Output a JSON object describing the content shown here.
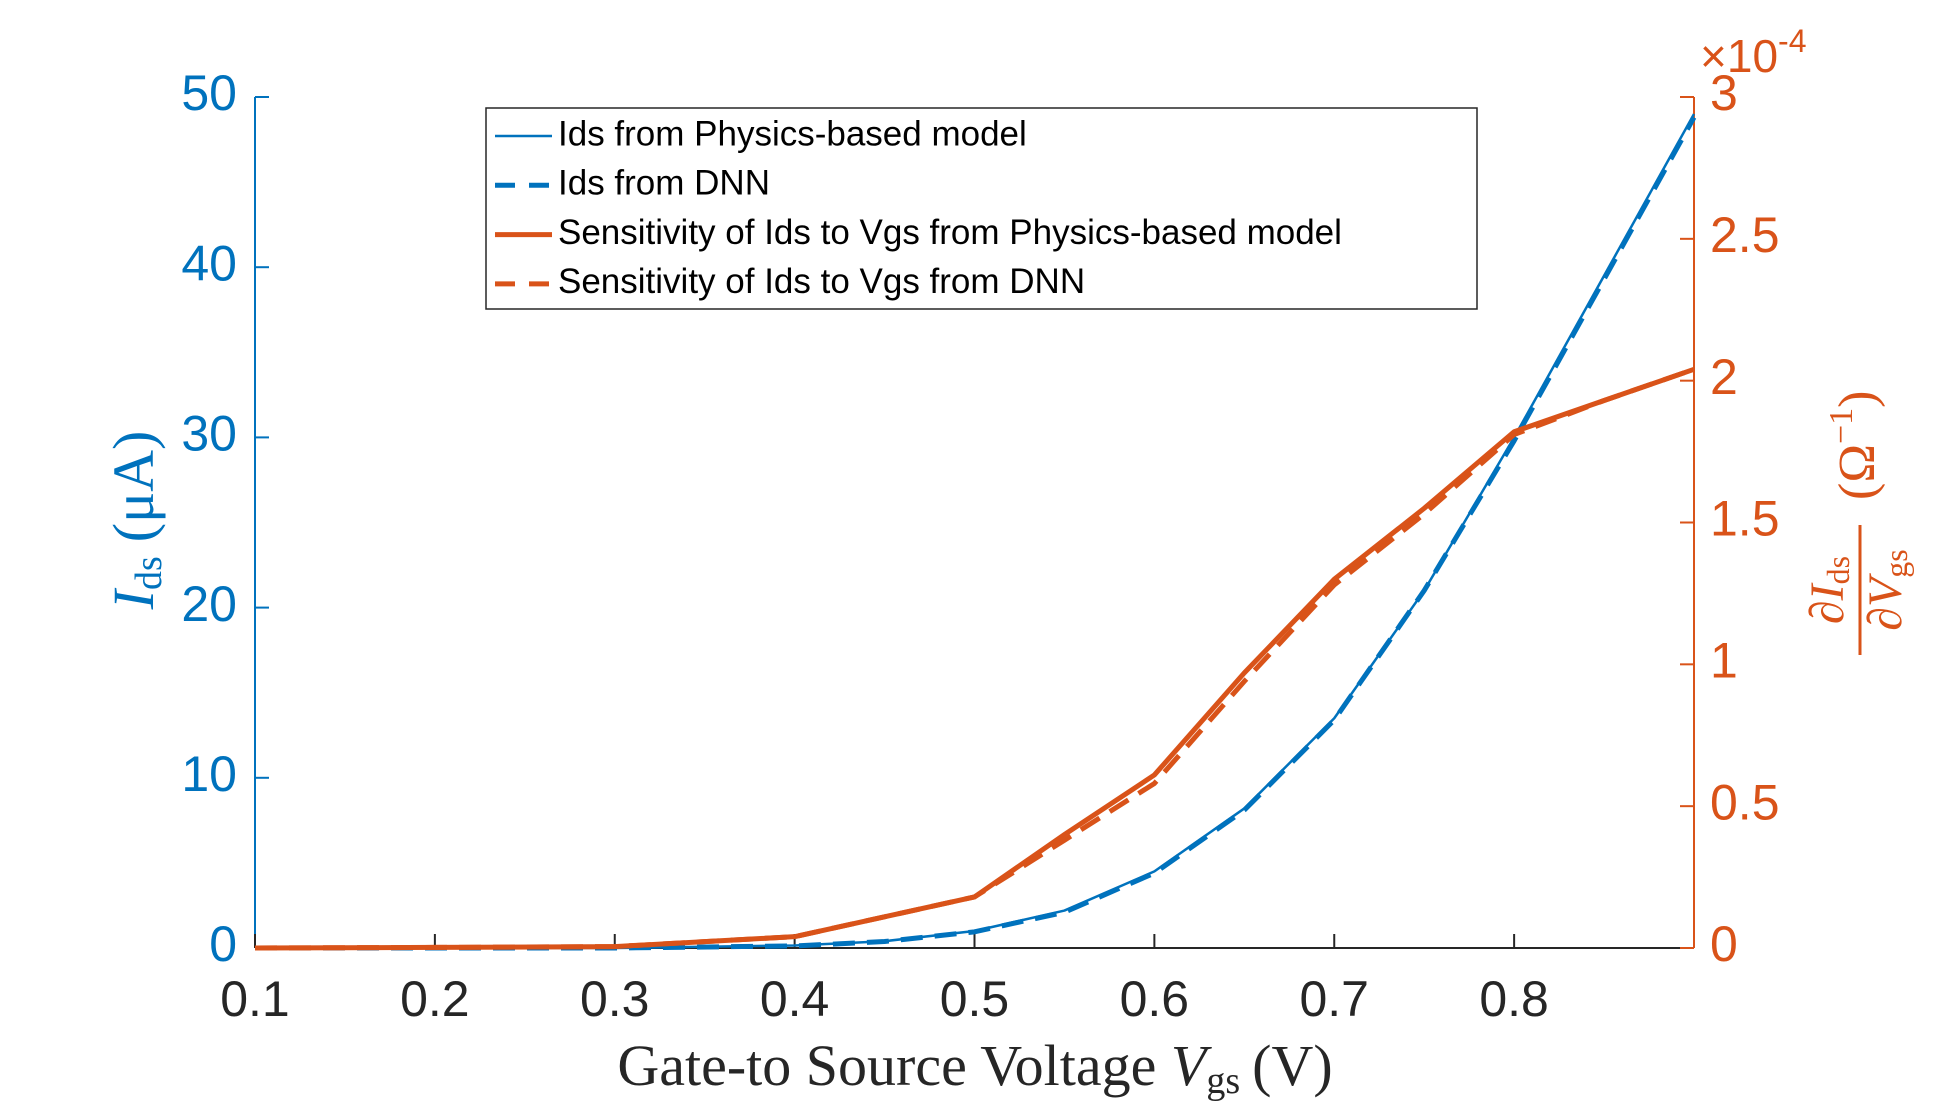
{
  "chart_data": {
    "type": "line",
    "x_label": {
      "text": "Gate-to Source Voltage ",
      "symbol": "V",
      "subscript": "gs",
      "unit": "(V)"
    },
    "y_label": {
      "symbol": "I",
      "subscript": "ds",
      "unit": "(μA)"
    },
    "y2_label": {
      "numerator": "∂I",
      "numerator_subscript": "ds",
      "denominator": "∂V",
      "denominator_subscript": "gs",
      "unit": "(Ω",
      "unit_exponent": "−1",
      "unit_close": ")"
    },
    "y2_multiplier": {
      "base": "×10",
      "exponent": "-4"
    },
    "x": [
      0.1,
      0.2,
      0.3,
      0.4,
      0.45,
      0.5,
      0.55,
      0.6,
      0.65,
      0.7,
      0.75,
      0.8,
      0.85,
      0.9
    ],
    "series": [
      {
        "name": "Ids from Physics-based model",
        "color": "#0072BD",
        "style": "solid",
        "axis": "y",
        "values": [
          0,
          0,
          0,
          0.15,
          0.4,
          1.0,
          2.2,
          4.5,
          8.2,
          13.5,
          21,
          30,
          39.5,
          49
        ]
      },
      {
        "name": "Ids from DNN",
        "color": "#0072BD",
        "style": "dashed",
        "axis": "y",
        "values": [
          0,
          0,
          0,
          0.12,
          0.38,
          0.95,
          2.1,
          4.4,
          8.1,
          13.4,
          21,
          29.8,
          39.3,
          48.8
        ]
      },
      {
        "name": "Sensitivity of Ids to Vgs from Physics-based model",
        "color": "#D95319",
        "style": "solid",
        "axis": "y2",
        "values": [
          0,
          2e-07,
          5e-07,
          4e-06,
          1.1e-05,
          1.8e-05,
          4e-05,
          6.1e-05,
          9.7e-05,
          0.00013,
          0.000155,
          0.000182,
          0.000193,
          0.000204
        ]
      },
      {
        "name": "Sensitivity of Ids to Vgs from DNN",
        "color": "#D95319",
        "style": "dashed",
        "axis": "y2",
        "values": [
          0,
          2e-07,
          5e-07,
          4e-06,
          1.1e-05,
          1.8e-05,
          3.8e-05,
          5.8e-05,
          9.4e-05,
          0.000128,
          0.000153,
          0.000181,
          0.000193,
          0.000204
        ]
      }
    ],
    "xlim": [
      0.1,
      0.9
    ],
    "xticks": [
      0.1,
      0.2,
      0.3,
      0.4,
      0.5,
      0.6,
      0.7,
      0.8
    ],
    "ylim": [
      0,
      50
    ],
    "yticks": [
      0,
      10,
      20,
      30,
      40,
      50
    ],
    "y2lim": [
      0,
      0.0003
    ],
    "y2ticks": [
      0,
      {
        "value": 5e-05,
        "label": "0.5"
      },
      {
        "value": 0.0001,
        "label": "1"
      },
      {
        "value": 0.00015,
        "label": "1.5"
      },
      {
        "value": 0.0002,
        "label": "2"
      },
      {
        "value": 0.00025,
        "label": "2.5"
      },
      {
        "value": 0.0003,
        "label": "3"
      }
    ],
    "legend": "top"
  }
}
